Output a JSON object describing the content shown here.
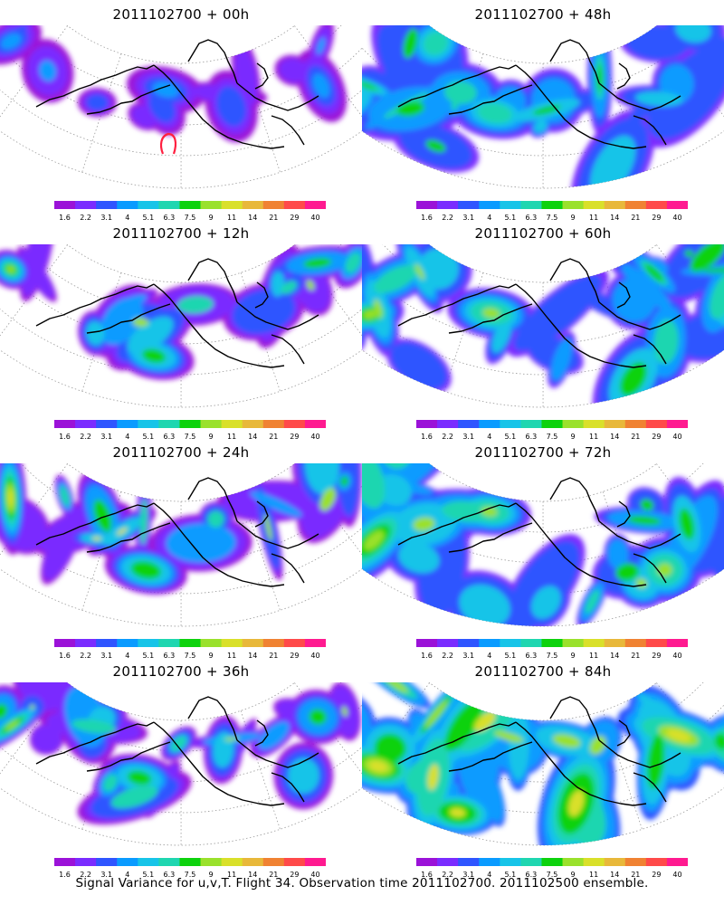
{
  "chart_data": {
    "type": "heatmap",
    "colorbar": {
      "levels": [
        "1.6",
        "2.2",
        "3.1",
        "4",
        "5.1",
        "6.3",
        "7.5",
        "9",
        "11",
        "14",
        "21",
        "29",
        "40"
      ],
      "colors": [
        "#9b12d8",
        "#7a2cff",
        "#2f55ff",
        "#0a9bff",
        "#17c4e8",
        "#1fd6b0",
        "#0dd20d",
        "#9ae12c",
        "#d9e02a",
        "#e8b83a",
        "#f08232",
        "#ff4a4a",
        "#ff1a90"
      ]
    },
    "panels": [
      {
        "title": "2011102700 + 00h",
        "lead_hours": 0
      },
      {
        "title": "2011102700 + 12h",
        "lead_hours": 12
      },
      {
        "title": "2011102700 + 24h",
        "lead_hours": 24
      },
      {
        "title": "2011102700 + 36h",
        "lead_hours": 36
      },
      {
        "title": "2011102700 + 48h",
        "lead_hours": 48
      },
      {
        "title": "2011102700 + 60h",
        "lead_hours": 60
      },
      {
        "title": "2011102700 + 72h",
        "lead_hours": 72
      },
      {
        "title": "2011102700 + 84h",
        "lead_hours": 84
      }
    ],
    "caption": "Signal Variance for u,v,T. Flight 34. Observation time 2011102700. 2011102500 ensemble."
  }
}
